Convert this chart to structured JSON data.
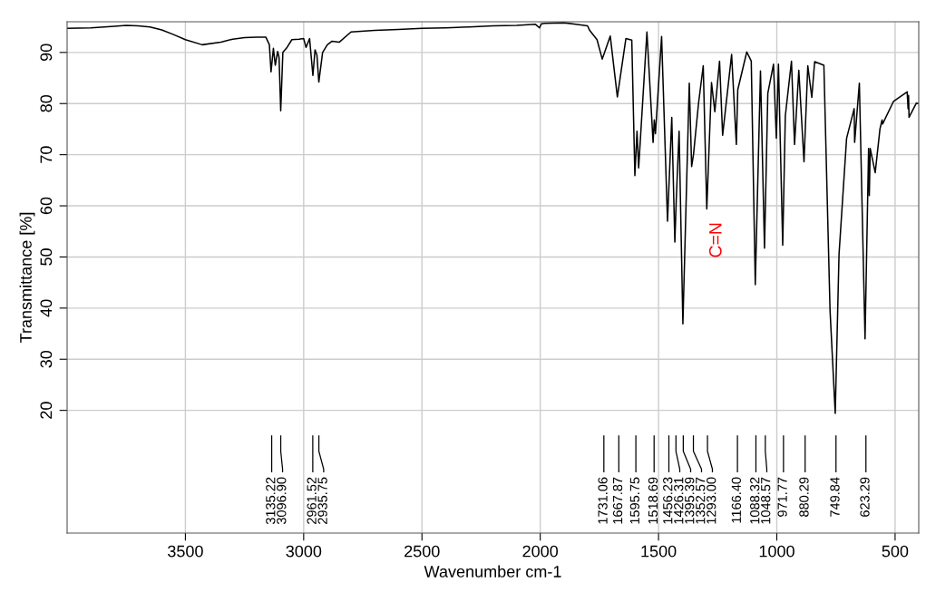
{
  "chart_data": {
    "type": "line",
    "xlabel": "Wavenumber cm-1",
    "ylabel": "Transmittance [%]",
    "xlim": [
      4000,
      400
    ],
    "ylim": [
      -4,
      96
    ],
    "xticks": [
      3500,
      3000,
      2500,
      2000,
      1500,
      1000,
      500
    ],
    "yticks": [
      20,
      30,
      40,
      50,
      60,
      70,
      80,
      90
    ],
    "grid": true,
    "marker": "none",
    "line_style": "solid",
    "x": [
      4000,
      3900,
      3800,
      3750,
      3700,
      3650,
      3600,
      3550,
      3500,
      3429,
      3350,
      3300,
      3250,
      3200,
      3160,
      3145,
      3138,
      3128,
      3120,
      3110,
      3104,
      3097,
      3088,
      3070,
      3050,
      3020,
      3000,
      2990,
      2975,
      2961,
      2952,
      2944,
      2936,
      2920,
      2900,
      2880,
      2850,
      2800,
      2700,
      2600,
      2500,
      2400,
      2300,
      2200,
      2100,
      2020,
      2003,
      1995,
      1980,
      1900,
      1850,
      1800,
      1791,
      1760,
      1738,
      1704,
      1674,
      1638,
      1613,
      1600,
      1591,
      1584,
      1549,
      1523,
      1518,
      1513,
      1487,
      1462,
      1444,
      1431,
      1425,
      1413,
      1397,
      1370,
      1360,
      1352,
      1331,
      1311,
      1296,
      1276,
      1262,
      1242,
      1229,
      1191,
      1171,
      1165,
      1127,
      1108,
      1091,
      1069,
      1052,
      1038,
      1014,
      1002,
      993,
      975,
      964,
      938,
      925,
      907,
      885,
      869,
      852,
      840,
      801,
      775,
      753,
      737,
      705,
      673,
      671,
      651,
      627,
      612,
      609,
      605,
      584,
      564,
      555,
      553,
      507,
      449,
      445,
      443,
      441,
      410,
      400
    ],
    "values": [
      94.7,
      94.8,
      95.1,
      95.3,
      95.2,
      95.0,
      94.4,
      93.5,
      92.5,
      91.5,
      92.0,
      92.6,
      92.9,
      93.0,
      93.0,
      91.5,
      86.2,
      90.8,
      87.5,
      90.2,
      89.0,
      78.6,
      90.0,
      91.0,
      92.5,
      92.6,
      92.7,
      91.0,
      92.7,
      85.5,
      90.5,
      89.5,
      84.2,
      90.0,
      91.5,
      92.2,
      92.0,
      94.0,
      94.3,
      94.5,
      94.7,
      94.8,
      95.0,
      95.2,
      95.3,
      95.5,
      94.8,
      95.6,
      95.7,
      95.8,
      95.5,
      95.2,
      94.3,
      92.5,
      88.7,
      93.2,
      81.3,
      92.7,
      92.4,
      65.9,
      74.6,
      67.4,
      94.0,
      72.4,
      76.8,
      74.1,
      93.1,
      57.0,
      77.3,
      52.9,
      61.2,
      74.6,
      36.9,
      84.0,
      67.7,
      70.1,
      80.0,
      87.4,
      59.4,
      84.1,
      78.4,
      88.3,
      73.8,
      89.6,
      72.0,
      82.7,
      90.1,
      88.3,
      44.6,
      86.4,
      51.7,
      82.0,
      87.7,
      73.2,
      87.7,
      52.3,
      77.6,
      88.3,
      72.0,
      86.5,
      68.6,
      87.4,
      81.2,
      88.2,
      87.5,
      39.6,
      19.4,
      50.5,
      73.2,
      79.0,
      72.4,
      84.0,
      34.0,
      71.2,
      62.0,
      71.2,
      66.5,
      75.0,
      76.8,
      76.0,
      80.4,
      82.3,
      79.0,
      81.6,
      77.3,
      80.1,
      80.0
    ],
    "color": "#000000",
    "annotations": [
      {
        "text": "3135.22",
        "x": 3135.22
      },
      {
        "text": "3096.90",
        "x": 3096.9
      },
      {
        "text": "2961.52",
        "x": 2961.52
      },
      {
        "text": "2935.75",
        "x": 2935.75
      },
      {
        "text": "1731.06",
        "x": 1731.06
      },
      {
        "text": "1667.87",
        "x": 1667.87
      },
      {
        "text": "1595.75",
        "x": 1595.75
      },
      {
        "text": "1518.69",
        "x": 1518.69
      },
      {
        "text": "1456.23",
        "x": 1456.23
      },
      {
        "text": "1426.31",
        "x": 1426.31
      },
      {
        "text": "1395.39",
        "x": 1395.39
      },
      {
        "text": "1352.57",
        "x": 1352.57
      },
      {
        "text": "1293.00",
        "x": 1293.0
      },
      {
        "text": "1166.40",
        "x": 1166.4
      },
      {
        "text": "1088.32",
        "x": 1088.32
      },
      {
        "text": "1048.57",
        "x": 1048.57
      },
      {
        "text": "971.77",
        "x": 971.77
      },
      {
        "text": "880.29",
        "x": 880.29
      },
      {
        "text": "749.84",
        "x": 749.84
      },
      {
        "text": "623.29",
        "x": 623.29
      },
      "C=N"
    ]
  }
}
